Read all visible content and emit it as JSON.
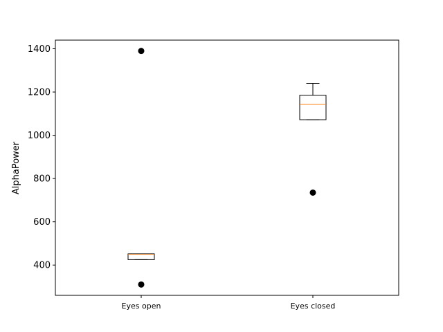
{
  "chart_data": {
    "type": "box",
    "title": "",
    "xlabel": "",
    "ylabel": "AlphaPower",
    "ylim": [
      260,
      1440
    ],
    "yticks": [
      400,
      600,
      800,
      1000,
      1200,
      1400
    ],
    "categories": [
      "Eyes open",
      "Eyes closed"
    ],
    "boxes": [
      {
        "name": "Eyes open",
        "q1": 425,
        "median": 450,
        "q3": 452,
        "whisker_low": 425,
        "whisker_high": 452,
        "fliers": [
          1390,
          310
        ]
      },
      {
        "name": "Eyes closed",
        "q1": 1072,
        "median": 1143,
        "q3": 1185,
        "whisker_low": 1072,
        "whisker_high": 1240,
        "fliers": [
          735
        ]
      }
    ],
    "colors": {
      "box": "#000000",
      "median": "#ff7f0e",
      "flier": "#000000"
    },
    "grid": false,
    "legend": "none"
  }
}
